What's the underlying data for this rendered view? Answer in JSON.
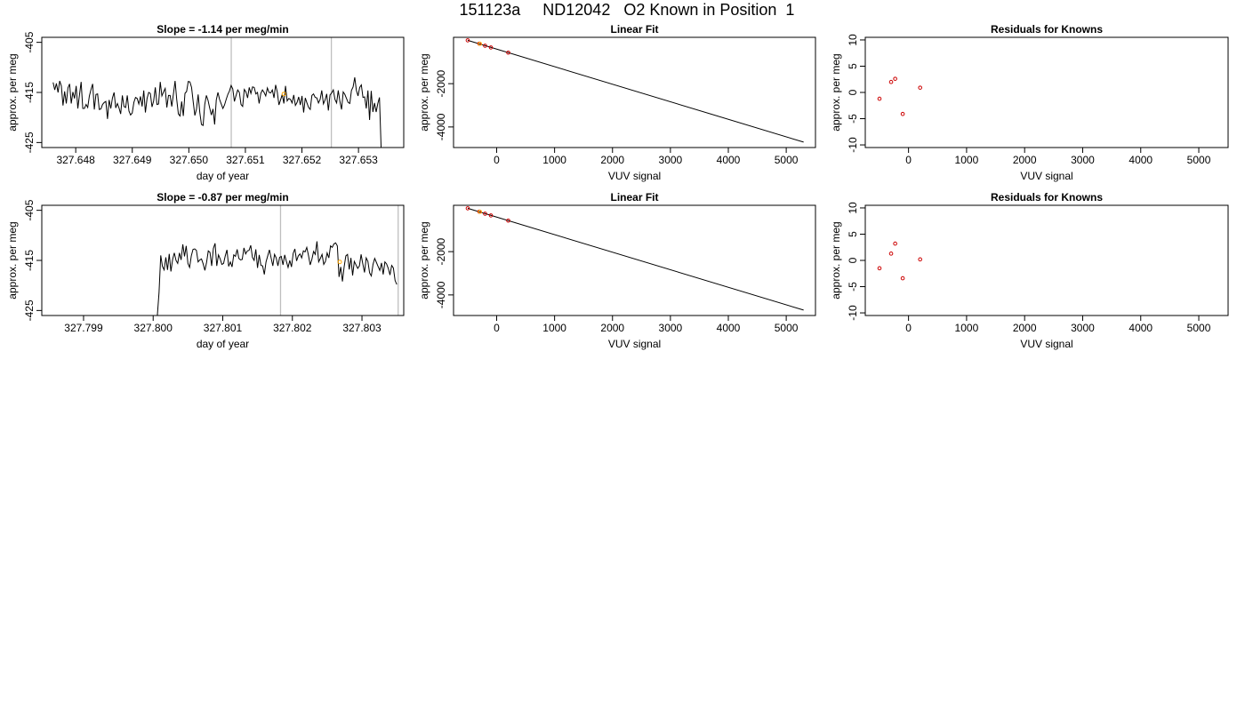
{
  "page_title": "151123a     ND12042   O2 Known in Position  1",
  "colors": {
    "trace": "#000000",
    "vline": "#bebebe",
    "orange": "#ffa500",
    "red": "#cc0000",
    "frame": "#000000"
  },
  "chart_data": [
    {
      "id": "p1",
      "type": "line",
      "title": "Slope =  -1.14  per meg/min",
      "xlabel": "day of year",
      "ylabel": "approx. per meg",
      "xlim": [
        327.6474,
        327.6538
      ],
      "ylim": [
        -426,
        -404
      ],
      "xticks": [
        327.648,
        327.649,
        327.65,
        327.651,
        327.652,
        327.653
      ],
      "xtick_labels": [
        "327.648",
        "327.649",
        "327.650",
        "327.651",
        "327.652",
        "327.653"
      ],
      "yticks": [
        -405,
        -415,
        -425
      ],
      "ytick_labels": [
        "-405",
        "-415",
        "-425"
      ],
      "x_start": 327.6476,
      "x_end": 327.6534,
      "y_values": [
        -413.0,
        -414.5,
        -413.2,
        -415.0,
        -412.7,
        -413.7,
        -417.6,
        -414.8,
        -417.2,
        -414.1,
        -413.3,
        -417.2,
        -414.9,
        -416.2,
        -413.7,
        -418.2,
        -415.5,
        -412.9,
        -418.2,
        -418.2,
        -417.4,
        -418.0,
        -415.7,
        -414.4,
        -413.3,
        -418.4,
        -415.4,
        -415.3,
        -418.4,
        -418.3,
        -417.4,
        -417.0,
        -416.8,
        -420.3,
        -416.5,
        -418.2,
        -416.1,
        -415.0,
        -418.1,
        -417.2,
        -418.1,
        -419.3,
        -415.6,
        -417.8,
        -418.0,
        -415.6,
        -418.7,
        -419.5,
        -419.1,
        -417.0,
        -416.0,
        -416.2,
        -417.3,
        -415.8,
        -417.8,
        -414.6,
        -419.0,
        -416.2,
        -415.0,
        -415.2,
        -417.9,
        -416.7,
        -414.0,
        -417.4,
        -417.3,
        -412.9,
        -415.7,
        -414.9,
        -414.2,
        -418.0,
        -415.6,
        -415.6,
        -417.8,
        -415.3,
        -412.7,
        -416.4,
        -419.3,
        -419.7,
        -416.8,
        -419.7,
        -415.2,
        -414.8,
        -412.8,
        -412.9,
        -414.0,
        -416.9,
        -419.6,
        -418.3,
        -415.4,
        -419.0,
        -421.4,
        -421.6,
        -417.4,
        -415.6,
        -416.6,
        -418.1,
        -419.5,
        -418.3,
        -421.4,
        -416.5,
        -415.0,
        -416.4,
        -417.3,
        -418.2,
        -417.5,
        -416.4,
        -415.4,
        -414.7,
        -413.6,
        -414.3,
        -416.8,
        -415.6,
        -414.5,
        -415.0,
        -417.4,
        -417.8,
        -414.4,
        -414.9,
        -416.1,
        -414.0,
        -415.2,
        -413.9,
        -414.0,
        -415.3,
        -415.0,
        -417.2,
        -415.2,
        -414.5,
        -415.0,
        -415.7,
        -414.1,
        -415.0,
        -415.1,
        -414.5,
        -416.1,
        -413.5,
        -414.9,
        -417.5,
        -416.5,
        -415.4,
        -417.2,
        -413.7,
        -416.7,
        -416.2,
        -416.4,
        -417.1,
        -415.5,
        -417.6,
        -417.0,
        -415.9,
        -417.5,
        -415.7,
        -419.0,
        -416.1,
        -417.1,
        -418.0,
        -418.4,
        -415.6,
        -415.3,
        -416.0,
        -416.1,
        -417.1,
        -416.4,
        -414.6,
        -417.3,
        -416.5,
        -415.3,
        -418.6,
        -415.5,
        -415.1,
        -414.5,
        -416.4,
        -417.1,
        -414.6,
        -416.8,
        -418.4,
        -414.9,
        -415.4,
        -416.2,
        -417.0,
        -417.2,
        -414.6,
        -413.9,
        -412.0,
        -414.6,
        -415.7,
        -414.0,
        -413.5,
        -416.0,
        -415.9,
        -418.2,
        -414.6,
        -420.5,
        -414.7,
        -418.9,
        -417.1,
        -418.9,
        -417.2,
        -416.0,
        -426.0
      ],
      "vlines": [
        327.65075,
        327.65252
      ],
      "marker": {
        "x": 327.65168,
        "y": -415.3
      }
    },
    {
      "id": "p2",
      "type": "line_scatter",
      "title": "Linear Fit",
      "xlabel": "VUV signal",
      "ylabel": "approx. per meg",
      "xlim": [
        -745,
        5505
      ],
      "ylim": [
        -4950,
        140
      ],
      "xticks": [
        0,
        1000,
        2000,
        3000,
        4000,
        5000
      ],
      "xtick_labels": [
        "0",
        "1000",
        "2000",
        "3000",
        "4000",
        "5000"
      ],
      "yticks": [
        -2000,
        -4000
      ],
      "ytick_labels": [
        "-2000",
        "-4000"
      ],
      "fit_line": [
        [
          -500,
          0
        ],
        [
          5300,
          -4700
        ]
      ],
      "points": [
        [
          -500,
          0
        ],
        [
          -300,
          -153
        ],
        [
          -200,
          -248
        ],
        [
          -100,
          -328
        ],
        [
          200,
          -568
        ]
      ],
      "known": {
        "x": -290,
        "y": -160
      }
    },
    {
      "id": "p3",
      "type": "scatter",
      "title": "Residuals for Knowns",
      "xlabel": "VUV signal",
      "ylabel": "approx. per meg",
      "xlim": [
        -745,
        5505
      ],
      "ylim": [
        -10.5,
        10.5
      ],
      "xticks": [
        0,
        1000,
        2000,
        3000,
        4000,
        5000
      ],
      "xtick_labels": [
        "0",
        "1000",
        "2000",
        "3000",
        "4000",
        "5000"
      ],
      "yticks": [
        10,
        5,
        0,
        -5,
        -10
      ],
      "ytick_labels": [
        "10",
        "5",
        "0",
        "-5",
        "-10"
      ],
      "points": [
        [
          -500,
          -1.2
        ],
        [
          -300,
          2.0
        ],
        [
          -230,
          2.6
        ],
        [
          -100,
          -4.1
        ],
        [
          200,
          0.9
        ]
      ]
    },
    {
      "id": "p4",
      "type": "line",
      "title": "Slope =  -0.87  per meg/min",
      "xlabel": "day of year",
      "ylabel": "approx. per meg",
      "xlim": [
        327.7984,
        327.8036
      ],
      "ylim": [
        -426,
        -404
      ],
      "xticks": [
        327.799,
        327.8,
        327.801,
        327.802,
        327.803
      ],
      "xtick_labels": [
        "327.799",
        "327.800",
        "327.801",
        "327.802",
        "327.803"
      ],
      "yticks": [
        -405,
        -415,
        -425
      ],
      "ytick_labels": [
        "-405",
        "-415",
        "-425"
      ],
      "x_start": 327.80006,
      "x_end": 327.8035,
      "y_values": [
        -426.0,
        -421.4,
        -414.0,
        -416.2,
        -416.9,
        -414.4,
        -416.9,
        -413.7,
        -417.2,
        -414.8,
        -413.5,
        -415.0,
        -415.6,
        -413.5,
        -414.9,
        -411.8,
        -414.2,
        -412.1,
        -415.6,
        -416.4,
        -414.1,
        -412.8,
        -412.7,
        -413.0,
        -415.3,
        -414.9,
        -414.7,
        -415.7,
        -417.0,
        -415.4,
        -413.1,
        -413.4,
        -416.1,
        -412.6,
        -411.6,
        -416.1,
        -413.9,
        -414.7,
        -415.8,
        -415.6,
        -414.1,
        -412.9,
        -416.2,
        -415.3,
        -416.3,
        -413.9,
        -414.2,
        -412.8,
        -414.6,
        -414.9,
        -414.8,
        -412.5,
        -413.7,
        -413.1,
        -413.0,
        -412.0,
        -414.4,
        -415.0,
        -412.8,
        -416.5,
        -413.9,
        -416.0,
        -416.1,
        -417.8,
        -415.3,
        -414.1,
        -412.9,
        -414.5,
        -416.1,
        -413.8,
        -414.5,
        -416.1,
        -414.4,
        -414.2,
        -415.9,
        -413.9,
        -415.2,
        -416.4,
        -415.0,
        -416.3,
        -413.6,
        -412.7,
        -415.1,
        -414.1,
        -413.7,
        -414.5,
        -413.1,
        -413.3,
        -412.4,
        -414.0,
        -415.9,
        -414.8,
        -413.2,
        -413.8,
        -411.2,
        -415.3,
        -414.6,
        -413.8,
        -415.8,
        -415.2,
        -413.5,
        -414.5,
        -412.1,
        -412.4,
        -411.7,
        -411.5,
        -412.1,
        -418.3,
        -416.3,
        -419.2,
        -416.3,
        -414.1,
        -413.8,
        -416.8,
        -414.5,
        -418.0,
        -415.2,
        -415.9,
        -416.6,
        -416.1,
        -413.8,
        -415.7,
        -417.4,
        -414.5,
        -415.2,
        -417.5,
        -418.1,
        -415.8,
        -414.6,
        -415.4,
        -416.2,
        -417.0,
        -415.5,
        -417.8,
        -415.3,
        -415.7,
        -416.6,
        -417.9,
        -416.0,
        -416.5,
        -419.0,
        -419.8
      ],
      "baseline": {
        "x0": 327.7984,
        "x1": 327.80006,
        "y": -426.0
      },
      "vlines": [
        327.80183,
        327.80352
      ],
      "marker": {
        "x": 327.80268,
        "y": -415.3
      }
    },
    {
      "id": "p5",
      "type": "line_scatter",
      "title": "Linear Fit",
      "xlabel": "VUV signal",
      "ylabel": "approx. per meg",
      "xlim": [
        -745,
        5505
      ],
      "ylim": [
        -4950,
        140
      ],
      "xticks": [
        0,
        1000,
        2000,
        3000,
        4000,
        5000
      ],
      "xtick_labels": [
        "0",
        "1000",
        "2000",
        "3000",
        "4000",
        "5000"
      ],
      "yticks": [
        -2000,
        -4000
      ],
      "ytick_labels": [
        "-2000",
        "-4000"
      ],
      "fit_line": [
        [
          -500,
          0
        ],
        [
          5300,
          -4700
        ]
      ],
      "points": [
        [
          -500,
          0
        ],
        [
          -300,
          -153
        ],
        [
          -200,
          -248
        ],
        [
          -100,
          -328
        ],
        [
          200,
          -568
        ]
      ],
      "known": {
        "x": -290,
        "y": -160
      }
    },
    {
      "id": "p6",
      "type": "scatter",
      "title": "Residuals for Knowns",
      "xlabel": "VUV signal",
      "ylabel": "approx. per meg",
      "xlim": [
        -745,
        5505
      ],
      "ylim": [
        -10.5,
        10.5
      ],
      "xticks": [
        0,
        1000,
        2000,
        3000,
        4000,
        5000
      ],
      "xtick_labels": [
        "0",
        "1000",
        "2000",
        "3000",
        "4000",
        "5000"
      ],
      "yticks": [
        10,
        5,
        0,
        -5,
        -10
      ],
      "ytick_labels": [
        "10",
        "5",
        "0",
        "-5",
        "-10"
      ],
      "points": [
        [
          -500,
          -1.5
        ],
        [
          -300,
          1.3
        ],
        [
          -230,
          3.2
        ],
        [
          -100,
          -3.4
        ],
        [
          200,
          0.2
        ]
      ]
    }
  ]
}
